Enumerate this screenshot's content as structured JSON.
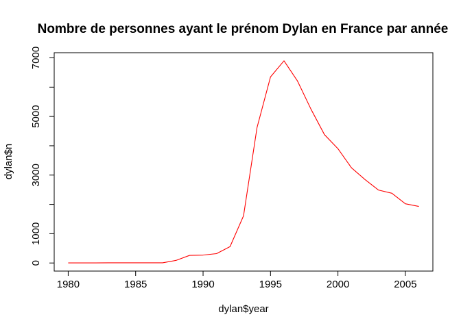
{
  "chart_data": {
    "type": "line",
    "title": "Nombre de personnes ayant le prénom Dylan en France par année",
    "xlabel": "dylan$year",
    "ylabel": "dylan$n",
    "xlim": [
      1980,
      2006
    ],
    "ylim": [
      0,
      6900
    ],
    "x_ticks": [
      1980,
      1985,
      1990,
      1995,
      2000,
      2005
    ],
    "y_ticks": [
      0,
      1000,
      2000,
      3000,
      4000,
      5000,
      6000,
      7000
    ],
    "y_tick_labels": [
      "0",
      "1000",
      "",
      "3000",
      "",
      "5000",
      "",
      "7000"
    ],
    "line_color": "#ff0000",
    "grid": false,
    "legend": "none",
    "series": [
      {
        "x": [
          1980,
          1981,
          1982,
          1983,
          1984,
          1985,
          1986,
          1987,
          1988,
          1989,
          1990,
          1991,
          1992,
          1993,
          1994,
          1995,
          1996,
          1997,
          1998,
          1999,
          2000,
          2001,
          2002,
          2003,
          2004,
          2005,
          2006
        ],
        "values": [
          3,
          3,
          4,
          5,
          6,
          5,
          6,
          7,
          90,
          260,
          270,
          320,
          560,
          1610,
          4620,
          6350,
          6900,
          6210,
          5250,
          4380,
          3900,
          3250,
          2850,
          2490,
          2380,
          2020,
          1930
        ]
      }
    ]
  }
}
